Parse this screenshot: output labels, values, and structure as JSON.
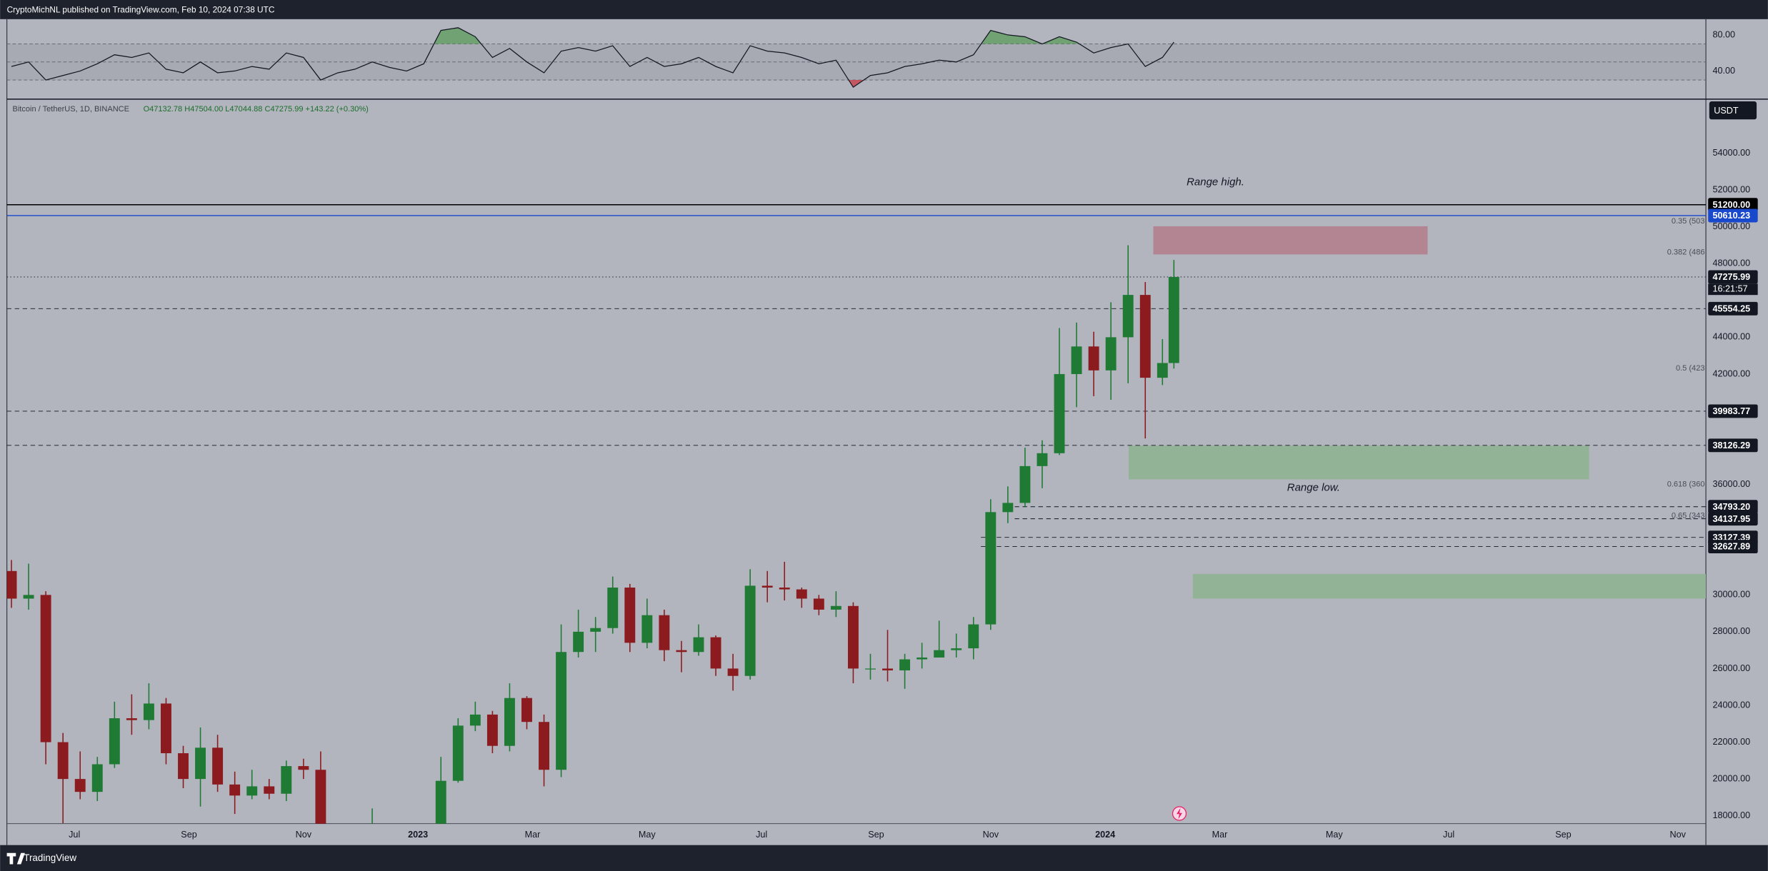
{
  "header": {
    "title": "CryptoMichNL published on TradingView.com, Feb 10, 2024 07:38 UTC"
  },
  "footer": {
    "brand": "TradingView"
  },
  "chart_data": [
    {
      "type": "line",
      "x": [
        4.9,
        5.2,
        5.5,
        5.8,
        6.1,
        6.4,
        6.7,
        7.0,
        7.3,
        7.6,
        7.9,
        8.2,
        8.5,
        8.8,
        9.1,
        9.4,
        9.7,
        10.0,
        10.3,
        10.6,
        10.9,
        11.2,
        11.5,
        11.8,
        12.1,
        12.4,
        12.7,
        13.0,
        13.3,
        13.6,
        13.9,
        14.2,
        14.5,
        14.8,
        15.1,
        15.4,
        15.7,
        16.0,
        16.3,
        16.6,
        16.9,
        17.2,
        17.5,
        17.8,
        18.1,
        18.4,
        18.7,
        19.0,
        19.3,
        19.6,
        19.9,
        20.2,
        20.5,
        20.8,
        21.1,
        21.4,
        21.7,
        22.0,
        22.3,
        22.6,
        22.9,
        23.2,
        23.5,
        23.8,
        24.1,
        24.4,
        24.7,
        25.0,
        25.2
      ],
      "values": [
        45,
        50,
        30,
        35,
        40,
        48,
        58,
        55,
        60,
        42,
        38,
        50,
        38,
        40,
        45,
        42,
        60,
        55,
        30,
        38,
        42,
        50,
        44,
        40,
        48,
        85,
        88,
        78,
        55,
        65,
        50,
        38,
        62,
        66,
        62,
        68,
        45,
        55,
        45,
        48,
        55,
        45,
        38,
        68,
        62,
        60,
        55,
        48,
        52,
        22,
        35,
        38,
        45,
        48,
        52,
        50,
        58,
        85,
        80,
        78,
        70,
        78,
        72,
        60,
        66,
        70,
        45,
        55,
        72
      ],
      "color": "#131722",
      "xlim": [
        4.82,
        34.49
      ],
      "ylim": [
        8.75,
        97.5
      ],
      "yticks": [
        {
          "value": 80,
          "label": "80.00"
        },
        {
          "value": 40,
          "label": "40.00"
        }
      ],
      "upper_band": 70,
      "middle_band": 50,
      "lower_band": 30,
      "overbought_color": "#5f9e62",
      "oversold_color": "#c8414b"
    },
    {
      "type": "candlestick",
      "symbol": "Bitcoin / TetherUS, 1D, BINANCE",
      "ohlc_legend": "O47132.78 H47504.00 L47044.88 C47275.99 +143.22 (+0.30%)",
      "currency": "USDT",
      "x": [
        4.9,
        5.2,
        5.5,
        5.8,
        6.1,
        6.4,
        6.7,
        7.0,
        7.3,
        7.6,
        7.9,
        8.2,
        8.5,
        8.8,
        9.1,
        9.4,
        9.7,
        10.0,
        10.3,
        10.6,
        10.9,
        11.2,
        11.5,
        11.8,
        12.1,
        12.4,
        12.7,
        13.0,
        13.3,
        13.6,
        13.9,
        14.2,
        14.5,
        14.8,
        15.1,
        15.4,
        15.7,
        16.0,
        16.3,
        16.6,
        16.9,
        17.2,
        17.5,
        17.8,
        18.1,
        18.4,
        18.7,
        19.0,
        19.3,
        19.6,
        19.9,
        20.2,
        20.5,
        20.8,
        21.1,
        21.4,
        21.7,
        22.0,
        22.3,
        22.6,
        22.9,
        23.2,
        23.5,
        23.8,
        24.1,
        24.4,
        24.7,
        25.0,
        25.2
      ],
      "open": [
        31300,
        29800,
        30000,
        22000,
        20000,
        19300,
        20800,
        23300,
        23200,
        24100,
        21400,
        20000,
        21700,
        19700,
        19100,
        19600,
        19200,
        20700,
        20500,
        16600,
        16500,
        16500,
        17100,
        16800,
        16500,
        16800,
        19900,
        22900,
        23500,
        21800,
        24400,
        23100,
        20500,
        26900,
        28000,
        28200,
        30400,
        27400,
        28900,
        27000,
        26900,
        27700,
        26000,
        25600,
        30500,
        30400,
        30300,
        29800,
        29200,
        29400,
        26000,
        26000,
        25900,
        26500,
        26600,
        27000,
        27100,
        28400,
        34500,
        35000,
        37000,
        37700,
        42000,
        43500,
        42200,
        44000,
        46300,
        41800,
        42600
      ],
      "high": [
        31900,
        31700,
        30200,
        22500,
        21500,
        21200,
        24200,
        24600,
        25200,
        24400,
        21800,
        22800,
        22400,
        20400,
        20500,
        20000,
        21000,
        21100,
        21500,
        17200,
        16900,
        18400,
        17400,
        16900,
        17100,
        21200,
        23300,
        24200,
        23700,
        25200,
        24500,
        23500,
        28400,
        29200,
        28800,
        31000,
        30600,
        29800,
        29200,
        27500,
        28400,
        27800,
        26800,
        31400,
        31300,
        31800,
        30400,
        30000,
        30200,
        29600,
        26800,
        28100,
        26800,
        27400,
        28600,
        27900,
        28800,
        35200,
        35900,
        38000,
        38400,
        44500,
        44800,
        44300,
        45900,
        49000,
        47000,
        43900,
        48200
      ],
      "low": [
        29300,
        29200,
        20800,
        17600,
        18900,
        18800,
        20600,
        22400,
        22700,
        20800,
        19500,
        18500,
        19300,
        18100,
        18900,
        18900,
        18800,
        20000,
        15600,
        15800,
        15900,
        16600,
        16500,
        16300,
        16400,
        16700,
        19800,
        22600,
        21400,
        21500,
        22700,
        19600,
        20100,
        26600,
        26900,
        27900,
        26900,
        27100,
        26400,
        25800,
        26700,
        25600,
        24800,
        25400,
        29600,
        29700,
        29300,
        28900,
        28800,
        25200,
        25400,
        25300,
        24900,
        26000,
        26600,
        26600,
        26500,
        28100,
        33900,
        34800,
        35800,
        37600,
        40200,
        40800,
        40600,
        41500,
        38500,
        41400,
        42300
      ],
      "close": [
        29800,
        30000,
        22000,
        20000,
        19300,
        20800,
        23300,
        23200,
        24100,
        21400,
        20000,
        21700,
        19700,
        19100,
        19600,
        19200,
        20700,
        20500,
        16600,
        16500,
        16500,
        17100,
        16800,
        16500,
        16800,
        19900,
        22900,
        23500,
        21800,
        24400,
        23100,
        20500,
        26900,
        28000,
        28200,
        30400,
        27400,
        28900,
        27000,
        26900,
        27700,
        26000,
        25600,
        30500,
        30400,
        30300,
        29800,
        29200,
        29400,
        26000,
        26000,
        25900,
        26500,
        26600,
        27000,
        27100,
        28400,
        34500,
        35000,
        37000,
        37700,
        42000,
        43500,
        42200,
        44000,
        46300,
        41800,
        42600,
        47275.99
      ],
      "up_color": "#1f7a34",
      "down_color": "#8c1b1f",
      "xlim": [
        4.82,
        34.49
      ],
      "xticks": [
        {
          "value": 6,
          "label": "Jul"
        },
        {
          "value": 8,
          "label": "Sep"
        },
        {
          "value": 10,
          "label": "Nov"
        },
        {
          "value": 12,
          "label": "2023"
        },
        {
          "value": 14,
          "label": "Mar"
        },
        {
          "value": 16,
          "label": "May"
        },
        {
          "value": 18,
          "label": "Jul"
        },
        {
          "value": 20,
          "label": "Sep"
        },
        {
          "value": 22,
          "label": "Nov"
        },
        {
          "value": 24,
          "label": "2024"
        },
        {
          "value": 26,
          "label": "Mar"
        },
        {
          "value": 28,
          "label": "May"
        },
        {
          "value": 30,
          "label": "Jul"
        },
        {
          "value": 32,
          "label": "Sep"
        },
        {
          "value": 34,
          "label": "Nov"
        }
      ],
      "ylim": [
        17572,
        56875
      ],
      "yticks": [
        {
          "value": 54000,
          "label": "54000.00"
        },
        {
          "value": 52000,
          "label": "52000.00"
        },
        {
          "value": 50000,
          "label": "50000.00"
        },
        {
          "value": 48000,
          "label": "48000.00"
        },
        {
          "value": 44000,
          "label": "44000.00"
        },
        {
          "value": 42000,
          "label": "42000.00"
        },
        {
          "value": 36000,
          "label": "36000.00"
        },
        {
          "value": 30000,
          "label": "30000.00"
        },
        {
          "value": 28000,
          "label": "28000.00"
        },
        {
          "value": 26000,
          "label": "26000.00"
        },
        {
          "value": 24000,
          "label": "24000.00"
        },
        {
          "value": 22000,
          "label": "22000.00"
        },
        {
          "value": 20000,
          "label": "20000.00"
        },
        {
          "value": 18000,
          "label": "18000.00"
        }
      ],
      "price_levels": [
        {
          "value": 51200,
          "label": "51200.00",
          "color": "#000000",
          "style": "solid"
        },
        {
          "value": 50610.23,
          "label": "50610.23",
          "color": "#1848cc",
          "style": "solid"
        },
        {
          "value": 47275.99,
          "label": "47275.99",
          "color": "#131722",
          "style": "dotted"
        },
        {
          "value": 45554.25,
          "label": "45554.25",
          "color": "#131722",
          "style": "dashed"
        },
        {
          "value": 39983.77,
          "label": "39983.77",
          "color": "#131722",
          "style": "dashed"
        },
        {
          "value": 38126.29,
          "label": "38126.29",
          "color": "#131722",
          "style": "dashed"
        },
        {
          "value": 34793.2,
          "label": "34793.20",
          "color": "#131722",
          "style": "dashed",
          "x_start": 22.42
        },
        {
          "value": 34137.95,
          "label": "34137.95",
          "color": "#131722",
          "style": "dashed",
          "x_start": 22.42
        },
        {
          "value": 33127.39,
          "label": "33127.39",
          "color": "#131722",
          "style": "dashed",
          "x_start": 21.83
        },
        {
          "value": 32627.89,
          "label": "32627.89",
          "color": "#131722",
          "style": "dashed",
          "x_start": 21.83
        }
      ],
      "countdown": "16:21:57",
      "zones": [
        {
          "x": [
            24.84,
            29.63
          ],
          "y": [
            48500,
            50030
          ],
          "color": "#b38592"
        },
        {
          "x": [
            24.41,
            32.45
          ],
          "y": [
            36280,
            38110
          ],
          "color": "#93b396"
        },
        {
          "x": [
            25.53,
            34.49
          ],
          "y": [
            29800,
            31140
          ],
          "color": "#93b396"
        }
      ],
      "fib_levels": [
        {
          "value": 50300,
          "label": "0.35 (503"
        },
        {
          "value": 48600,
          "label": "0.382 (486"
        },
        {
          "value": 42300,
          "label": "0.5 (423"
        },
        {
          "value": 36000,
          "label": "0.618 (360"
        },
        {
          "value": 34300,
          "label": "0.65 (343"
        }
      ],
      "annotations": [
        {
          "text": "Range high."
        },
        {
          "text": "Range low."
        }
      ]
    }
  ]
}
